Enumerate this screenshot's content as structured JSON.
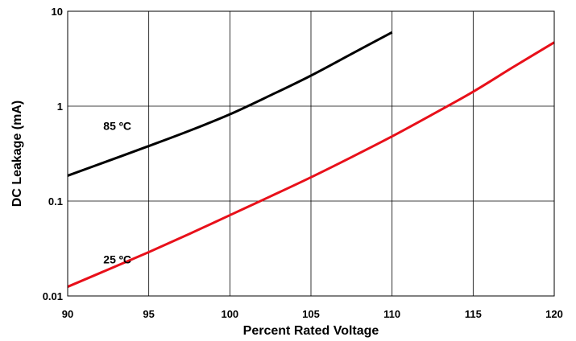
{
  "chart_data": {
    "type": "line",
    "title": "",
    "xlabel": "Percent Rated Voltage",
    "ylabel": "DC Leakage (mA)",
    "xlim": [
      90,
      120
    ],
    "ylim": [
      0.01,
      10
    ],
    "y_scale": "log",
    "grid": true,
    "x_ticks": [
      90,
      95,
      100,
      105,
      110,
      115,
      120
    ],
    "x_tick_labels": [
      "90",
      "95",
      "100",
      "105",
      "110",
      "115",
      "120"
    ],
    "y_ticks": [
      0.01,
      0.1,
      1,
      10
    ],
    "y_tick_labels": [
      "0.01",
      "0.1",
      "1",
      "10"
    ],
    "series": [
      {
        "name": "85 ºC",
        "color": "#000000",
        "x": [
          90,
          92.5,
          95,
          97.5,
          100,
          102.5,
          105,
          107.5,
          110
        ],
        "y": [
          0.185,
          0.265,
          0.38,
          0.55,
          0.82,
          1.3,
          2.1,
          3.55,
          6.0
        ]
      },
      {
        "name": "25 ºC",
        "color": "#e8101a",
        "x": [
          90,
          92.5,
          95,
          97.5,
          100,
          102.5,
          105,
          107.5,
          110,
          112.5,
          115,
          117.5,
          120
        ],
        "y": [
          0.0125,
          0.019,
          0.029,
          0.045,
          0.071,
          0.112,
          0.178,
          0.29,
          0.48,
          0.82,
          1.42,
          2.6,
          4.7
        ]
      }
    ]
  }
}
